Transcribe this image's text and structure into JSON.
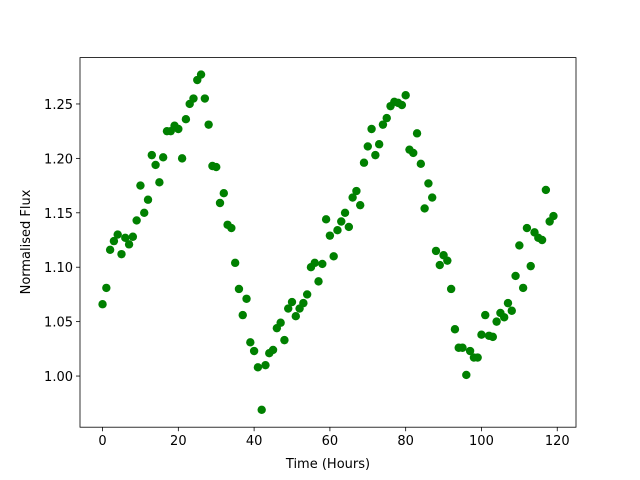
{
  "chart_data": {
    "type": "scatter",
    "x_label": "Time (Hours)",
    "y_label": "Normalised Flux",
    "color": "#008000",
    "x": [
      0,
      1,
      2,
      3,
      4,
      5,
      6,
      7,
      8,
      9,
      10,
      11,
      12,
      13,
      14,
      15,
      16,
      17,
      18,
      19,
      20,
      21,
      22,
      23,
      24,
      25,
      26,
      27,
      28,
      29,
      30,
      31,
      32,
      33,
      34,
      35,
      36,
      37,
      38,
      39,
      40,
      41,
      42,
      43,
      44,
      45,
      46,
      47,
      48,
      49,
      50,
      51,
      52,
      53,
      54,
      55,
      56,
      57,
      58,
      59,
      60,
      61,
      62,
      63,
      64,
      65,
      66,
      67,
      68,
      69,
      70,
      71,
      72,
      73,
      74,
      75,
      76,
      77,
      78,
      79,
      80,
      81,
      82,
      83,
      84,
      85,
      86,
      87,
      88,
      89,
      90,
      91,
      92,
      93,
      94,
      95,
      96,
      97,
      98,
      99,
      100,
      101,
      102,
      103,
      104,
      105,
      106,
      107,
      108,
      109,
      110,
      111,
      112,
      113,
      114,
      115,
      116,
      117,
      118,
      119
    ],
    "values": [
      1.066,
      1.081,
      1.116,
      1.124,
      1.13,
      1.112,
      1.127,
      1.121,
      1.128,
      1.143,
      1.175,
      1.15,
      1.162,
      1.203,
      1.194,
      1.178,
      1.201,
      1.225,
      1.225,
      1.23,
      1.227,
      1.2,
      1.236,
      1.25,
      1.255,
      1.272,
      1.277,
      1.255,
      1.231,
      1.193,
      1.192,
      1.159,
      1.168,
      1.139,
      1.136,
      1.104,
      1.08,
      1.056,
      1.071,
      1.031,
      1.023,
      1.008,
      0.969,
      1.01,
      1.021,
      1.024,
      1.044,
      1.049,
      1.033,
      1.062,
      1.068,
      1.055,
      1.062,
      1.067,
      1.075,
      1.1,
      1.104,
      1.087,
      1.103,
      1.144,
      1.129,
      1.11,
      1.134,
      1.142,
      1.15,
      1.137,
      1.164,
      1.17,
      1.157,
      1.196,
      1.211,
      1.227,
      1.203,
      1.213,
      1.231,
      1.237,
      1.248,
      1.252,
      1.251,
      1.249,
      1.258,
      1.208,
      1.205,
      1.223,
      1.195,
      1.154,
      1.177,
      1.164,
      1.115,
      1.102,
      1.111,
      1.106,
      1.08,
      1.043,
      1.026,
      1.026,
      1.001,
      1.023,
      1.017,
      1.017,
      1.038,
      1.056,
      1.037,
      1.036,
      1.05,
      1.058,
      1.054,
      1.067,
      1.06,
      1.092,
      1.12,
      1.081,
      1.136,
      1.101,
      1.132,
      1.127,
      1.125,
      1.171,
      1.142,
      1.147
    ],
    "xlim": [
      -5.95,
      124.95
    ],
    "ylim": [
      0.953,
      1.2926
    ],
    "xticks": [
      0,
      20,
      40,
      60,
      80,
      100,
      120
    ],
    "yticks": [
      {
        "value": 1.0,
        "label": "1.00"
      },
      1.05,
      {
        "value": 1.1,
        "label": "1.10"
      },
      1.15,
      {
        "value": 1.2,
        "label": "1.20"
      },
      1.25
    ],
    "grid": false
  }
}
